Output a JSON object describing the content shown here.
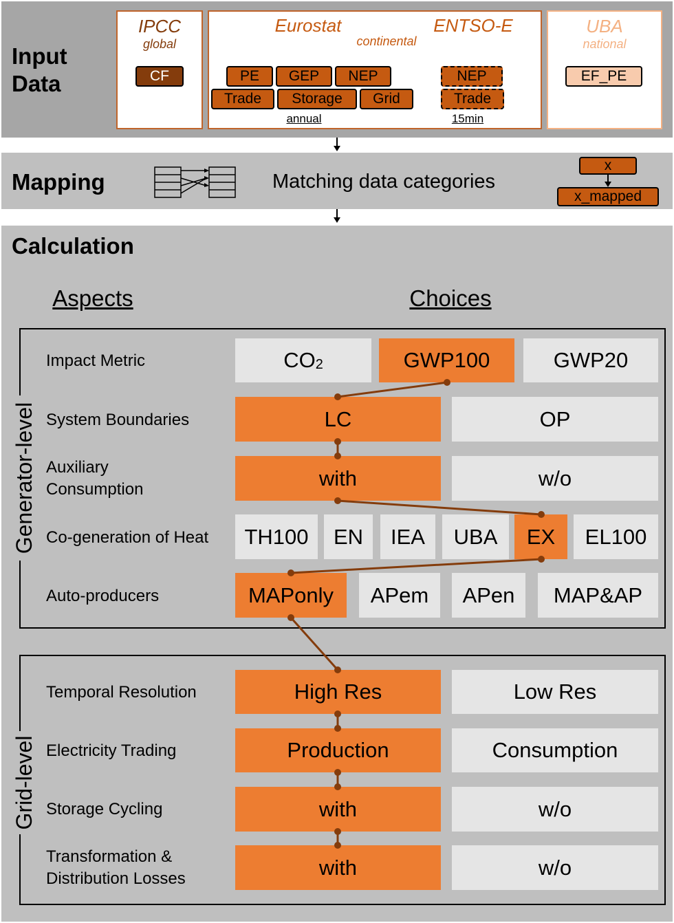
{
  "input": {
    "title_line1": "Input",
    "title_line2": "Data",
    "sources": {
      "ipcc": {
        "name": "IPCC",
        "scope": "global",
        "tags": [
          "CF"
        ]
      },
      "eurostat": {
        "name": "Eurostat",
        "tags_row1": [
          "PE",
          "GEP",
          "NEP"
        ],
        "tags_row2": [
          "Trade",
          "Storage",
          "Grid"
        ],
        "resolution": "annual"
      },
      "continental": "continental",
      "entsoe": {
        "name": "ENTSO-E",
        "tags": [
          "NEP",
          "Trade"
        ],
        "resolution": "15min"
      },
      "uba": {
        "name": "UBA",
        "scope": "national",
        "tags": [
          "EF_PE"
        ]
      }
    }
  },
  "mapping": {
    "title": "Mapping",
    "description": "Matching data categories",
    "legend_from": "x",
    "legend_to": "x_mapped"
  },
  "calculation": {
    "title": "Calculation",
    "aspects_heading": "Aspects",
    "choices_heading": "Choices",
    "generator_group": "Generator-level",
    "grid_group": "Grid-level",
    "rows": [
      {
        "aspect": "Impact Metric",
        "choices": [
          "CO2",
          "GWP100",
          "GWP20"
        ],
        "selected": "GWP100",
        "co2_base": "CO",
        "co2_sub": "2"
      },
      {
        "aspect": "System Boundaries",
        "choices": [
          "LC",
          "OP"
        ],
        "selected": "LC"
      },
      {
        "aspect_line1": "Auxiliary",
        "aspect_line2": "Consumption",
        "choices": [
          "with",
          "w/o"
        ],
        "selected": "with"
      },
      {
        "aspect": "Co-generation of Heat",
        "choices": [
          "TH100",
          "EN",
          "IEA",
          "UBA",
          "EX",
          "EL100"
        ],
        "selected": "EX"
      },
      {
        "aspect": "Auto-producers",
        "choices": [
          "MAPonly",
          "APem",
          "APen",
          "MAP&AP"
        ],
        "selected": "MAPonly"
      },
      {
        "aspect": "Temporal Resolution",
        "choices": [
          "High Res",
          "Low Res"
        ],
        "selected": "High Res"
      },
      {
        "aspect": "Electricity Trading",
        "choices": [
          "Production",
          "Consumption"
        ],
        "selected": "Production"
      },
      {
        "aspect": "Storage Cycling",
        "choices": [
          "with",
          "w/o"
        ],
        "selected": "with"
      },
      {
        "aspect_line1": "Transformation &",
        "aspect_line2": "Distribution Losses",
        "choices": [
          "with",
          "w/o"
        ],
        "selected": "with"
      }
    ]
  },
  "colors": {
    "selected": "#ed7d31",
    "unselected": "#e5e5e5",
    "tag": "#c55a11",
    "tag_dark": "#843c0c",
    "path": "#843c0c",
    "band": "#bfbfbf"
  }
}
